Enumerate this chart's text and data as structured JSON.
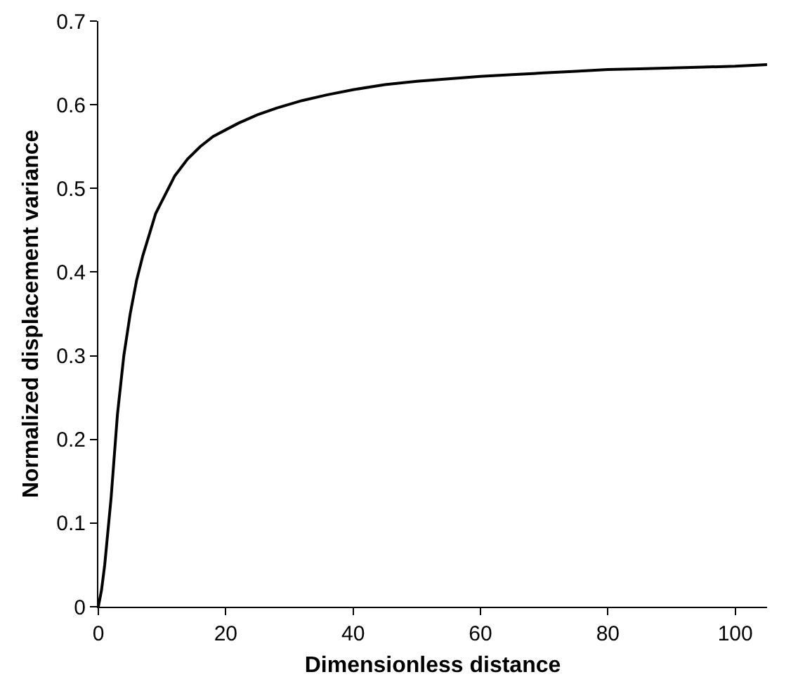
{
  "chart_data": {
    "type": "line",
    "xlabel": "Dimensionless distance",
    "ylabel": "Normalized displacement variance",
    "x": [
      0,
      0.5,
      1,
      1.5,
      2,
      2.5,
      3,
      4,
      5,
      6,
      7,
      8,
      9,
      10,
      12,
      14,
      16,
      18,
      20,
      22,
      25,
      28,
      32,
      36,
      40,
      45,
      50,
      55,
      60,
      65,
      70,
      75,
      80,
      85,
      90,
      95,
      100,
      105
    ],
    "series": [
      {
        "color": "#000000",
        "values": [
          0,
          0.02,
          0.05,
          0.09,
          0.13,
          0.18,
          0.23,
          0.3,
          0.35,
          0.39,
          0.42,
          0.445,
          0.47,
          0.485,
          0.515,
          0.535,
          0.55,
          0.562,
          0.57,
          0.578,
          0.588,
          0.596,
          0.605,
          0.612,
          0.618,
          0.624,
          0.628,
          0.631,
          0.634,
          0.636,
          0.638,
          0.64,
          0.642,
          0.643,
          0.644,
          0.645,
          0.646,
          0.648
        ]
      }
    ],
    "xlim": [
      0,
      105
    ],
    "xticks": [
      0,
      20,
      40,
      60,
      80,
      100
    ],
    "ylim": [
      0,
      0.7
    ],
    "yticks": [
      0,
      0.1,
      0.2,
      0.3,
      0.4,
      0.5,
      0.6,
      0.7
    ],
    "grid": false,
    "marker": "none",
    "line_style": "solid"
  }
}
